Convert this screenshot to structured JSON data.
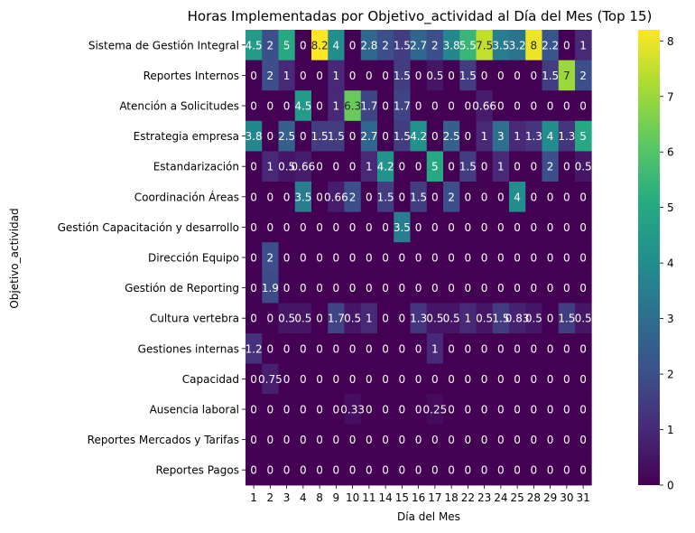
{
  "chart_data": {
    "type": "heatmap",
    "title": "Horas Implementadas por Objetivo_actividad al Día del Mes (Top 15)",
    "xlabel": "Día del Mes",
    "ylabel": "Objetivo_actividad",
    "x_categories": [
      "1",
      "2",
      "3",
      "4",
      "8",
      "9",
      "10",
      "11",
      "14",
      "15",
      "16",
      "17",
      "18",
      "22",
      "23",
      "24",
      "25",
      "28",
      "29",
      "30",
      "31"
    ],
    "y_categories": [
      "Sistema de Gestión Integral",
      "Reportes Internos",
      "Atención a Solicitudes",
      "Estrategia empresa",
      "Estandarización",
      "Coordinación Áreas",
      "Gestión Capacitación y desarrollo",
      "Dirección Equipo",
      "Gestión de Reporting",
      "Cultura vertebra",
      "Gestiones internas",
      "Capacidad",
      "Ausencia laboral",
      "Reportes Mercados y Tarifas",
      "Reportes Pagos"
    ],
    "values": [
      [
        4.5,
        2,
        5,
        0,
        8.2,
        4,
        0,
        2.8,
        2,
        1.5,
        2.7,
        2,
        3.8,
        5.5,
        7.5,
        3.5,
        3.2,
        8,
        2.2,
        0,
        1
      ],
      [
        0,
        2,
        1,
        0,
        0,
        1,
        0,
        0,
        0,
        1.5,
        0,
        0.5,
        0,
        1.5,
        0,
        0,
        0,
        0,
        1.5,
        7,
        2
      ],
      [
        0,
        0,
        0,
        4.5,
        0,
        1,
        6.3,
        1.7,
        0,
        1.7,
        0,
        0,
        0,
        0,
        0.66,
        0,
        0,
        0,
        0,
        0,
        0
      ],
      [
        3.8,
        0,
        2.5,
        0,
        1.5,
        1.5,
        0,
        2.7,
        0,
        1.5,
        4.2,
        0,
        2.5,
        0,
        1,
        3,
        1,
        1.3,
        4,
        1.3,
        5
      ],
      [
        0,
        1,
        0.5,
        0.66,
        0,
        0,
        0,
        1,
        4.2,
        0,
        0,
        5,
        0,
        1.5,
        0,
        1,
        0,
        0,
        2,
        0,
        0.5
      ],
      [
        0,
        0,
        0,
        3.5,
        0,
        0.66,
        2,
        0,
        1.5,
        0,
        1.5,
        0,
        2,
        0,
        0,
        0,
        4,
        0,
        0,
        0,
        0
      ],
      [
        0,
        0,
        0,
        0,
        0,
        0,
        0,
        0,
        0,
        3.5,
        0,
        0,
        0,
        0,
        0,
        0,
        0,
        0,
        0,
        0,
        0
      ],
      [
        0,
        2,
        0,
        0,
        0,
        0,
        0,
        0,
        0,
        0,
        0,
        0,
        0,
        0,
        0,
        0,
        0,
        0,
        0,
        0,
        0
      ],
      [
        0,
        1.9,
        0,
        0,
        0,
        0,
        0,
        0,
        0,
        0,
        0,
        0,
        0,
        0,
        0,
        0,
        0,
        0,
        0,
        0,
        0
      ],
      [
        0,
        0,
        0.5,
        0.5,
        0,
        1.7,
        0.5,
        1,
        0,
        0,
        1.3,
        0.5,
        0.5,
        1,
        0.5,
        1.5,
        0.83,
        0.5,
        0,
        1.5,
        0.5
      ],
      [
        1.2,
        0,
        0,
        0,
        0,
        0,
        0,
        0,
        0,
        0,
        0,
        1,
        0,
        0,
        0,
        0,
        0,
        0,
        0,
        0,
        0
      ],
      [
        0,
        0.75,
        0,
        0,
        0,
        0,
        0,
        0,
        0,
        0,
        0,
        0,
        0,
        0,
        0,
        0,
        0,
        0,
        0,
        0,
        0
      ],
      [
        0,
        0,
        0,
        0,
        0,
        0,
        0.33,
        0,
        0,
        0,
        0,
        0.25,
        0,
        0,
        0,
        0,
        0,
        0,
        0,
        0,
        0
      ],
      [
        0,
        0,
        0,
        0,
        0,
        0,
        0,
        0,
        0,
        0,
        0,
        0,
        0,
        0,
        0,
        0,
        0,
        0,
        0,
        0,
        0
      ],
      [
        0,
        0,
        0,
        0,
        0,
        0,
        0,
        0,
        0,
        0,
        0,
        0,
        0,
        0,
        0,
        0,
        0,
        0,
        0,
        0,
        0
      ]
    ],
    "color_range": [
      0,
      8.2
    ],
    "colormap": "viridis",
    "colorbar_ticks": [
      0,
      1,
      2,
      3,
      4,
      5,
      6,
      7,
      8
    ]
  }
}
